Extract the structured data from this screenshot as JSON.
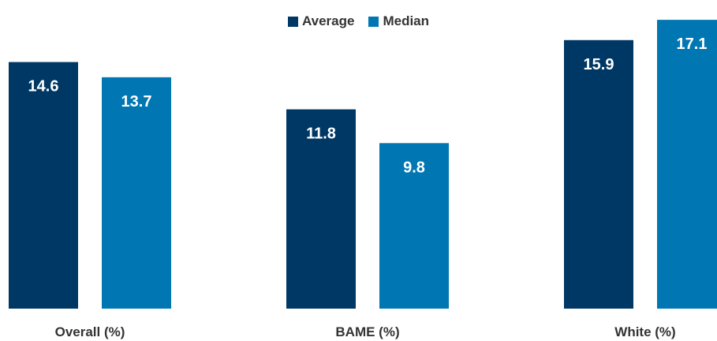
{
  "chart_data": {
    "type": "bar",
    "categories": [
      "Overall (%)",
      "BAME (%)",
      "White (%)"
    ],
    "series": [
      {
        "name": "Average",
        "values": [
          14.6,
          11.8,
          15.9
        ],
        "color": "#003865"
      },
      {
        "name": "Median",
        "values": [
          13.7,
          9.8,
          17.1
        ],
        "color": "#0077b3"
      }
    ],
    "ylim": [
      0,
      17.9
    ],
    "grid": false,
    "legend_position": "top-center",
    "data_labels": "inside-top",
    "data_label_color": "#ffffff"
  }
}
